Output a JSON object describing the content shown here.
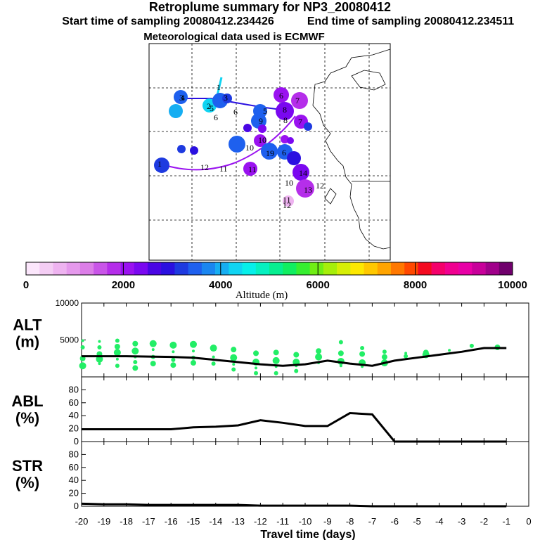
{
  "header": {
    "title": "Retroplume summary for NP3_20080412",
    "start_label": "Start time of sampling 20080412.234426",
    "end_label": "End time of sampling 20080412.234511",
    "met_label": "Meteorological data used is ECMWF"
  },
  "colors": {
    "text": "#000000",
    "grid": "#000000",
    "alt_scatter": "#22ee66",
    "line": "#000000",
    "colorbar": [
      "#fbe6fb",
      "#f4cdf4",
      "#eeb3f0",
      "#e599ec",
      "#dc7ee8",
      "#c955e8",
      "#b52eea",
      "#9a12f0",
      "#7a08f0",
      "#4a06e4",
      "#2a10e0",
      "#1e3ae0",
      "#1e60ee",
      "#1a86f0",
      "#16aef2",
      "#10d4f2",
      "#06f0ea",
      "#06f0c0",
      "#06ee90",
      "#10ee60",
      "#36ee30",
      "#70ee14",
      "#a6ee0a",
      "#d6ee06",
      "#fde800",
      "#ffc800",
      "#ffa400",
      "#ff7800",
      "#ff4800",
      "#f40a20",
      "#f4006a",
      "#f00090",
      "#e800a6",
      "#c8009a",
      "#a0008a",
      "#70006c"
    ]
  },
  "map": {
    "trajectory_labels": [
      "1",
      "2",
      "3",
      "4",
      "5",
      "6",
      "7",
      "8",
      "9",
      "10",
      "11",
      "12",
      "13",
      "14"
    ]
  },
  "colorbar": {
    "ticks": [
      "0",
      "2000",
      "4000",
      "6000",
      "8000",
      "10000"
    ],
    "label": "Altitude (m)",
    "range": [
      0,
      10000
    ]
  },
  "chart_data": [
    {
      "type": "scatter+line",
      "name": "ALT",
      "ylabel": "ALT",
      "yunit": "(m)",
      "ytick_labels": [
        "10000",
        "5000"
      ],
      "ylim": [
        0,
        10000
      ],
      "x": [
        -20,
        -19,
        -18,
        -17,
        -16,
        -15,
        -14,
        -13,
        -12,
        -11,
        -10,
        -9,
        -8,
        -7,
        -6,
        -5,
        -4,
        -3,
        -2,
        -1
      ],
      "mean_line": [
        2800,
        2800,
        2800,
        2750,
        2700,
        2600,
        2300,
        2000,
        1700,
        1500,
        1700,
        2200,
        1800,
        1500,
        2200,
        2600,
        3000,
        3400,
        3900,
        3900
      ],
      "scatter": [
        {
          "x": -19.95,
          "y": 4900
        },
        {
          "x": -19.95,
          "y": 4000
        },
        {
          "x": -19.95,
          "y": 2500
        },
        {
          "x": -19.95,
          "y": 1500
        },
        {
          "x": -19.2,
          "y": 4800
        },
        {
          "x": -19.2,
          "y": 4000
        },
        {
          "x": -19.2,
          "y": 3100
        },
        {
          "x": -19.2,
          "y": 2400
        },
        {
          "x": -19.2,
          "y": 1800
        },
        {
          "x": -18.4,
          "y": 4900
        },
        {
          "x": -18.4,
          "y": 4100
        },
        {
          "x": -18.4,
          "y": 3300
        },
        {
          "x": -18.4,
          "y": 2400
        },
        {
          "x": -18.4,
          "y": 1500
        },
        {
          "x": -17.6,
          "y": 4500
        },
        {
          "x": -17.6,
          "y": 3500
        },
        {
          "x": -17.6,
          "y": 2700
        },
        {
          "x": -17.6,
          "y": 2000
        },
        {
          "x": -17.6,
          "y": 1200
        },
        {
          "x": -16.8,
          "y": 4500
        },
        {
          "x": -16.8,
          "y": 3700
        },
        {
          "x": -16.8,
          "y": 2700
        },
        {
          "x": -16.8,
          "y": 1800
        },
        {
          "x": -15.9,
          "y": 4300
        },
        {
          "x": -15.9,
          "y": 3400
        },
        {
          "x": -15.9,
          "y": 2300
        },
        {
          "x": -15.9,
          "y": 1600
        },
        {
          "x": -15,
          "y": 4400
        },
        {
          "x": -15,
          "y": 3500
        },
        {
          "x": -15,
          "y": 2600
        },
        {
          "x": -15,
          "y": 1900
        },
        {
          "x": -14.1,
          "y": 3900
        },
        {
          "x": -14.1,
          "y": 2700
        },
        {
          "x": -14.1,
          "y": 1800
        },
        {
          "x": -13.2,
          "y": 3700
        },
        {
          "x": -13.2,
          "y": 2600
        },
        {
          "x": -13.2,
          "y": 1700
        },
        {
          "x": -13.2,
          "y": 1000
        },
        {
          "x": -12.2,
          "y": 3200
        },
        {
          "x": -12.2,
          "y": 2000
        },
        {
          "x": -12.2,
          "y": 1200
        },
        {
          "x": -12.2,
          "y": 500
        },
        {
          "x": -11.3,
          "y": 3300
        },
        {
          "x": -11.3,
          "y": 2200
        },
        {
          "x": -11.3,
          "y": 1400
        },
        {
          "x": -11.3,
          "y": 500
        },
        {
          "x": -10.4,
          "y": 3000
        },
        {
          "x": -10.4,
          "y": 2000
        },
        {
          "x": -10.4,
          "y": 1500
        },
        {
          "x": -10.4,
          "y": 800
        },
        {
          "x": -9.4,
          "y": 3500
        },
        {
          "x": -9.4,
          "y": 2700
        },
        {
          "x": -9.4,
          "y": 1900
        },
        {
          "x": -8.4,
          "y": 4700
        },
        {
          "x": -8.4,
          "y": 3200
        },
        {
          "x": -8.4,
          "y": 2100
        },
        {
          "x": -8.4,
          "y": 1500
        },
        {
          "x": -7.45,
          "y": 3900
        },
        {
          "x": -7.45,
          "y": 3100
        },
        {
          "x": -7.45,
          "y": 1900
        },
        {
          "x": -7.45,
          "y": 1400
        },
        {
          "x": -6.45,
          "y": 3400
        },
        {
          "x": -6.45,
          "y": 2700
        },
        {
          "x": -6.45,
          "y": 1900
        },
        {
          "x": -5.5,
          "y": 3200
        },
        {
          "x": -5.5,
          "y": 2800
        },
        {
          "x": -4.6,
          "y": 3300
        },
        {
          "x": -4.6,
          "y": 3000
        },
        {
          "x": -3.55,
          "y": 3600
        },
        {
          "x": -2.55,
          "y": 4200
        },
        {
          "x": -1.4,
          "y": 4000
        }
      ]
    },
    {
      "type": "line",
      "name": "ABL",
      "ylabel": "ABL",
      "yunit": "(%)",
      "ytick_labels": [
        "80",
        "60",
        "40",
        "20",
        "0"
      ],
      "ylim": [
        0,
        100
      ],
      "x": [
        -20,
        -19,
        -18,
        -17,
        -16,
        -15,
        -14,
        -13,
        -12,
        -11,
        -10,
        -9,
        -8,
        -7,
        -6,
        -5,
        -4,
        -3,
        -2,
        -1
      ],
      "values": [
        19,
        19,
        19,
        19,
        19,
        22,
        23,
        25,
        33,
        29,
        24,
        24,
        44,
        42,
        0,
        0,
        0,
        0,
        0,
        0
      ]
    },
    {
      "type": "line",
      "name": "STR",
      "ylabel": "STR",
      "yunit": "(%)",
      "ytick_labels": [
        "80",
        "60",
        "40",
        "20",
        "0"
      ],
      "ylim": [
        0,
        100
      ],
      "x": [
        -20,
        -19,
        -18,
        -17,
        -16,
        -15,
        -14,
        -13,
        -12,
        -11,
        -10,
        -9,
        -8,
        -7,
        -6,
        -5,
        -4,
        -3,
        -2,
        -1
      ],
      "values": [
        4,
        3,
        3,
        2,
        2,
        2,
        2,
        2,
        1,
        1,
        1,
        1,
        1,
        0,
        0,
        0,
        0,
        0,
        0,
        0
      ],
      "xlabel": "Travel time (days)",
      "xtick_labels": [
        "-20",
        "-19",
        "-18",
        "-17",
        "-16",
        "-15",
        "-14",
        "-13",
        "-12",
        "-11",
        "-10",
        "-9",
        "-8",
        "-7",
        "-6",
        "-5",
        "-4",
        "-3",
        "-2",
        "-1",
        "0"
      ],
      "xlim": [
        -20,
        0
      ]
    }
  ]
}
